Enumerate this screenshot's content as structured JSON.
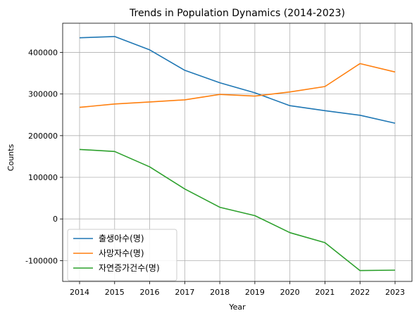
{
  "chart_data": {
    "type": "line",
    "title": "Trends in Population Dynamics (2014-2023)",
    "xlabel": "Year",
    "ylabel": "Counts",
    "x": [
      "2014",
      "2015",
      "2016",
      "2017",
      "2018",
      "2019",
      "2020",
      "2021",
      "2022",
      "2023"
    ],
    "ylim": [
      -150000,
      470000
    ],
    "yticks": [
      -100000,
      0,
      100000,
      200000,
      300000,
      400000
    ],
    "ytick_labels": [
      "-100000",
      "0",
      "100000",
      "200000",
      "300000",
      "400000"
    ],
    "grid": true,
    "legend_position": "lower-left",
    "series": [
      {
        "name": "출생아수(명)",
        "color": "#1f77b4",
        "values": [
          435000,
          438000,
          406000,
          357000,
          327000,
          303000,
          272000,
          260000,
          249000,
          230000
        ]
      },
      {
        "name": "사망자수(명)",
        "color": "#ff7f0e",
        "values": [
          268000,
          276000,
          281000,
          286000,
          299000,
          295000,
          305000,
          318000,
          373000,
          353000
        ]
      },
      {
        "name": "자연증가건수(명)",
        "color": "#2ca02c",
        "values": [
          167000,
          162000,
          125000,
          72000,
          28000,
          8000,
          -33000,
          -57000,
          -124000,
          -123000
        ]
      }
    ]
  }
}
